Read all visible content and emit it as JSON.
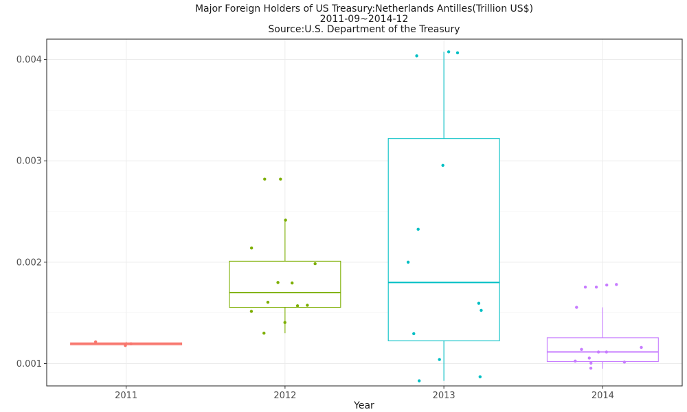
{
  "chart_data": {
    "type": "box",
    "title": [
      "Major Foreign Holders of US Treasury:Netherlands Antilles(Trillion US$)",
      "2011-09~2014-12",
      "Source:U.S. Department of the Treasury"
    ],
    "xlabel": "Year",
    "ylabel": "",
    "categories": [
      "2011",
      "2012",
      "2013",
      "2014"
    ],
    "y_ticks": [
      0.001,
      0.002,
      0.003,
      0.004
    ],
    "y_tick_labels": [
      "0.001",
      "0.002",
      "0.003",
      "0.004"
    ],
    "ylim": [
      0.00078,
      0.0042
    ],
    "grid": true,
    "legend": "none",
    "colors": [
      "#F8766D",
      "#7CAE00",
      "#00BFC4",
      "#C77CFF"
    ],
    "boxes": [
      {
        "category": "2011",
        "whisker_low": 0.001178,
        "q1": 0.001185,
        "median": 0.001195,
        "q3": 0.001205,
        "whisker_high": 0.001215
      },
      {
        "category": "2012",
        "whisker_low": 0.0013,
        "q1": 0.001555,
        "median": 0.0017,
        "q3": 0.00201,
        "whisker_high": 0.00242
      },
      {
        "category": "2013",
        "whisker_low": 0.00083,
        "q1": 0.001225,
        "median": 0.0018,
        "q3": 0.00322,
        "whisker_high": 0.004075
      },
      {
        "category": "2014",
        "whisker_low": 0.00095,
        "q1": 0.00102,
        "median": 0.001115,
        "q3": 0.001255,
        "whisker_high": 0.001555
      }
    ],
    "points": [
      [
        0.001178,
        0.001195,
        0.001215
      ],
      [
        0.00282,
        0.00282,
        0.002415,
        0.00214,
        0.001985,
        0.001795,
        0.0018,
        0.001605,
        0.001575,
        0.00157,
        0.001515,
        0.001405,
        0.0013
      ],
      [
        0.004065,
        0.004035,
        0.004075,
        0.002955,
        0.002325,
        0.002,
        0.001595,
        0.001525,
        0.001295,
        0.00104,
        0.00087,
        0.00083
      ],
      [
        0.001755,
        0.001775,
        0.00178,
        0.001755,
        0.001555,
        0.00116,
        0.001115,
        0.00114,
        0.001115,
        0.001055,
        0.001025,
        0.001015,
        0.001005,
        0.000955
      ]
    ]
  }
}
